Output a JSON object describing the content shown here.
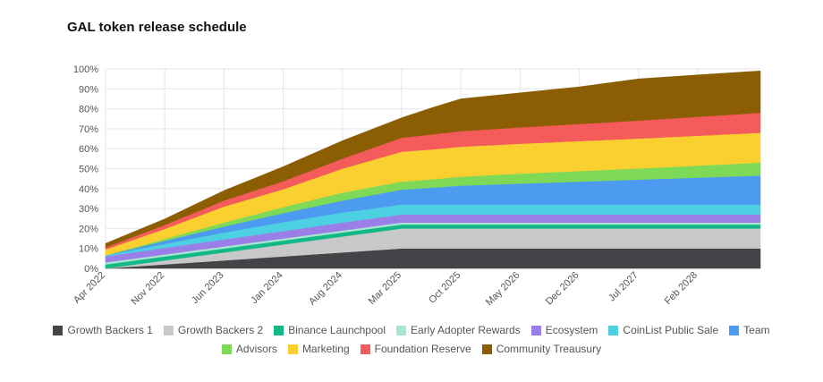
{
  "chart_data": {
    "type": "area",
    "stacked": true,
    "title": "GAL token release schedule",
    "x_tick_labels": [
      "Apr 2022",
      "Nov 2022",
      "Jun 2023",
      "Jan 2024",
      "Aug 2024",
      "Mar 2025",
      "Oct 2025",
      "May 2026",
      "Dec 2026",
      "Jul 2027",
      "Feb 2028"
    ],
    "x": [
      "Apr 2022",
      "Nov 2022",
      "Jun 2023",
      "Jan 2024",
      "Aug 2024",
      "Mar 2025",
      "Jul 2025",
      "Oct 2025",
      "May 2026",
      "Dec 2026",
      "Jul 2027",
      "Feb 2028",
      "Sep 2028"
    ],
    "y_tick_labels": [
      "0%",
      "10%",
      "20%",
      "30%",
      "40%",
      "50%",
      "60%",
      "70%",
      "80%",
      "90%",
      "100%"
    ],
    "ylim": [
      0,
      100
    ],
    "grid": true,
    "legend_position": "bottom",
    "series": [
      {
        "name": "Growth Backers 1",
        "color": "#434348",
        "values": [
          0,
          2,
          4,
          6,
          8,
          10,
          10,
          10,
          10,
          10,
          10,
          10,
          10
        ]
      },
      {
        "name": "Growth Backers 2",
        "color": "#c8c8c8",
        "values": [
          0,
          2,
          4,
          6,
          8,
          10,
          10,
          10,
          10,
          10,
          10,
          10,
          10
        ]
      },
      {
        "name": "Binance Launchpool",
        "color": "#12b886",
        "values": [
          2,
          2,
          2,
          2,
          2,
          2,
          2,
          2,
          2,
          2,
          2,
          2,
          2
        ]
      },
      {
        "name": "Early Adopter Rewards",
        "color": "#a8e6cf",
        "values": [
          1,
          1,
          1,
          1,
          1,
          1,
          1,
          1,
          1,
          1,
          1,
          1,
          1
        ]
      },
      {
        "name": "Ecosystem",
        "color": "#9b7fe8",
        "values": [
          3,
          3.3,
          3.5,
          3.7,
          4,
          4,
          4,
          4,
          4,
          4,
          4,
          4,
          4
        ]
      },
      {
        "name": "CoinList Public Sale",
        "color": "#4dd0e1",
        "values": [
          0.5,
          2,
          3.5,
          4.5,
          5,
          5,
          5,
          5,
          5,
          5,
          5,
          5,
          5
        ]
      },
      {
        "name": "Team",
        "color": "#4d9bf0",
        "values": [
          0,
          1.5,
          3,
          4.5,
          6,
          7.5,
          8.5,
          9.5,
          10.5,
          11.5,
          12.5,
          13.5,
          14.5
        ]
      },
      {
        "name": "Advisors",
        "color": "#7ed957",
        "values": [
          0,
          1,
          2,
          3,
          4,
          4,
          4.2,
          4.5,
          5,
          5.3,
          5.6,
          6,
          6.5
        ]
      },
      {
        "name": "Marketing",
        "color": "#f9d030",
        "values": [
          3,
          5,
          8,
          9,
          12,
          15,
          15,
          15,
          15,
          15,
          15,
          15,
          15
        ]
      },
      {
        "name": "Foundation Reserve",
        "color": "#f45b5b",
        "values": [
          1,
          2,
          3,
          4,
          5,
          7,
          7.5,
          7.8,
          8.2,
          8.6,
          9,
          9.5,
          10
        ]
      },
      {
        "name": "Community Treausury",
        "color": "#8b5e04",
        "values": [
          2,
          3,
          5,
          7.3,
          9,
          10,
          13.5,
          16.2,
          17.3,
          18.6,
          20.9,
          21,
          21
        ]
      }
    ]
  }
}
